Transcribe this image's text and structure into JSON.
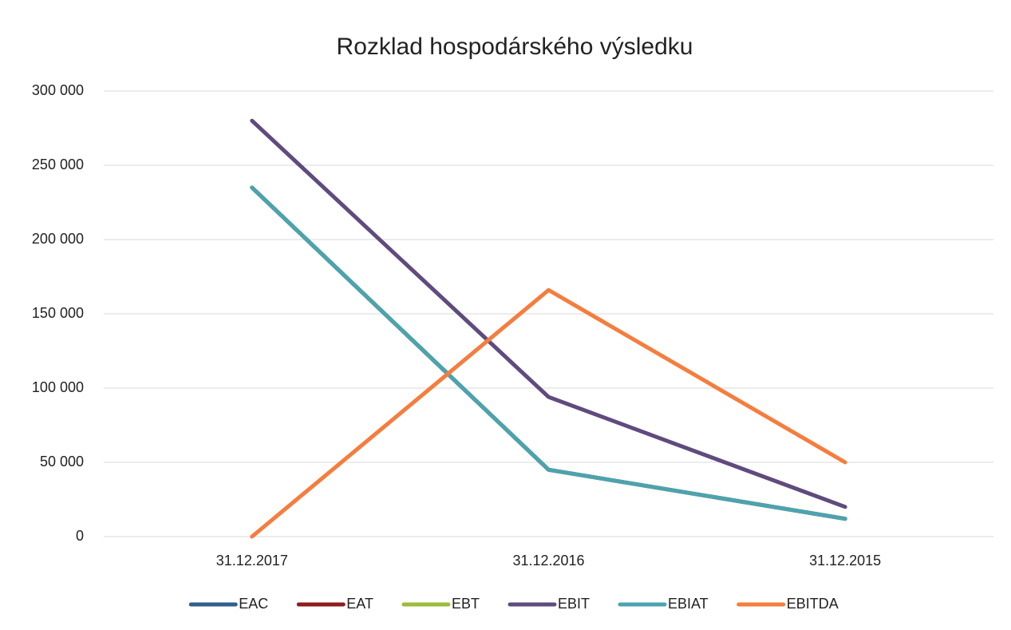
{
  "chart_data": {
    "type": "line",
    "title": "Rozklad hospodárského výsledku",
    "categories": [
      "31.12.2017",
      "31.12.2016",
      "31.12.2015"
    ],
    "series": [
      {
        "name": "EAC",
        "color": "#2f5f8c",
        "values": [
          235000,
          45000,
          12000
        ]
      },
      {
        "name": "EAT",
        "color": "#8e1c1c",
        "values": [
          235000,
          45000,
          12000
        ]
      },
      {
        "name": "EBT",
        "color": "#9cbc3c",
        "values": [
          235000,
          45000,
          12000
        ]
      },
      {
        "name": "EBIT",
        "color": "#5f4b7e",
        "values": [
          280000,
          94000,
          20000
        ]
      },
      {
        "name": "EBIAT",
        "color": "#4ca3b0",
        "values": [
          235000,
          45000,
          12000
        ]
      },
      {
        "name": "EBITDA",
        "color": "#f57d3d",
        "values": [
          0,
          166000,
          50000
        ]
      }
    ],
    "ylim": [
      0,
      300000
    ],
    "yticks": [
      0,
      {
        "value": 50000,
        "label": "50 000"
      },
      {
        "value": 100000,
        "label": "100 000"
      },
      {
        "value": 150000,
        "label": "150 000"
      },
      {
        "value": 200000,
        "label": "200 000"
      },
      {
        "value": 250000,
        "label": "250 000"
      },
      {
        "value": 300000,
        "label": "300 000"
      }
    ],
    "grid": true,
    "legend": "bottom"
  }
}
